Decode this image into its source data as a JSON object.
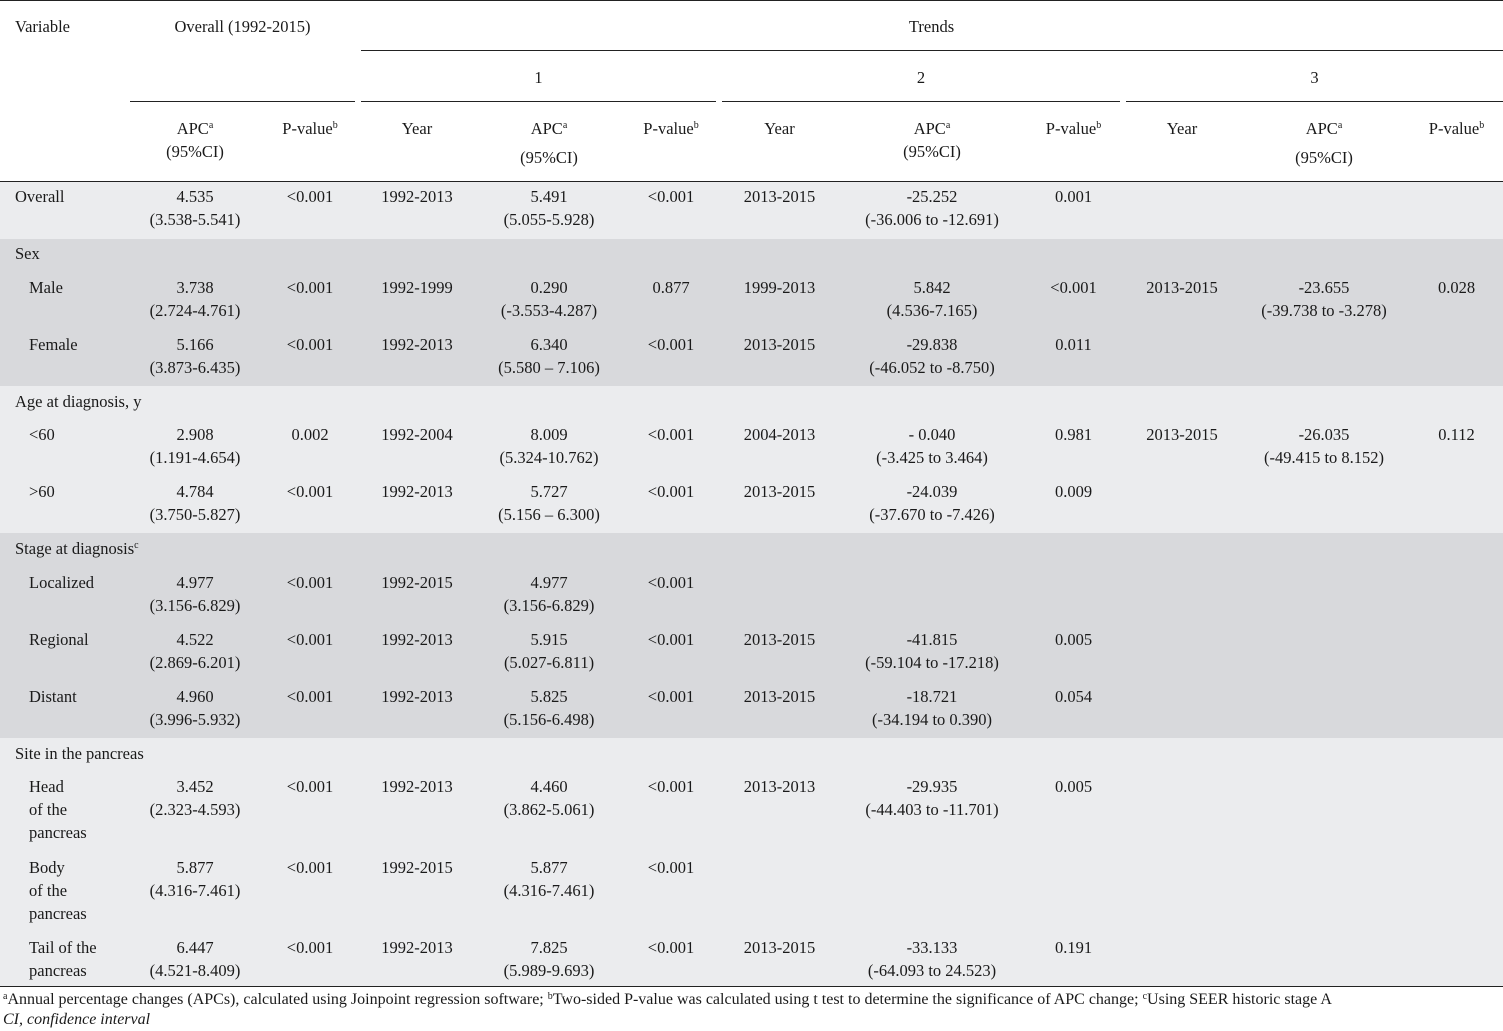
{
  "header": {
    "variable": "Variable",
    "overall": "Overall (1992-2015)",
    "trends": "Trends",
    "segments": [
      "1",
      "2",
      "3"
    ],
    "apc": "APC",
    "ci": "(95%CI)",
    "pvalue": "P-value",
    "year": "Year",
    "sup_a": "a",
    "sup_b": "b"
  },
  "rows": [
    {
      "label": "Overall",
      "ov_apc": "4.535",
      "ov_ci": "(3.538-5.541)",
      "ov_p": "<0.001",
      "y1": "1992-2013",
      "a1": "5.491",
      "ci1": "(5.055-5.928)",
      "p1": "<0.001",
      "y2": "2013-2015",
      "a2": "-25.252",
      "ci2": "(-36.006 to -12.691)",
      "p2": "0.001",
      "y3": "",
      "a3": "",
      "ci3": "",
      "p3": ""
    },
    {
      "label": "Male",
      "ov_apc": "3.738",
      "ov_ci": "(2.724-4.761)",
      "ov_p": "<0.001",
      "y1": "1992-1999",
      "a1": "0.290",
      "ci1": "(-3.553-4.287)",
      "p1": "0.877",
      "y2": "1999-2013",
      "a2": "5.842",
      "ci2": "(4.536-7.165)",
      "p2": "<0.001",
      "y3": "2013-2015",
      "a3": "-23.655",
      "ci3": "(-39.738 to -3.278)",
      "p3": "0.028"
    },
    {
      "label": "Female",
      "ov_apc": "5.166",
      "ov_ci": "(3.873-6.435)",
      "ov_p": "<0.001",
      "y1": "1992-2013",
      "a1": "6.340",
      "ci1": "(5.580 – 7.106)",
      "p1": "<0.001",
      "y2": "2013-2015",
      "a2": "-29.838",
      "ci2": "(-46.052 to -8.750)",
      "p2": "0.011",
      "y3": "",
      "a3": "",
      "ci3": "",
      "p3": ""
    },
    {
      "label": "<60",
      "ov_apc": "2.908",
      "ov_ci": "(1.191-4.654)",
      "ov_p": "0.002",
      "y1": "1992-2004",
      "a1": "8.009",
      "ci1": "(5.324-10.762)",
      "p1": "<0.001",
      "y2": "2004-2013",
      "a2": "- 0.040",
      "ci2": "(-3.425 to 3.464)",
      "p2": "0.981",
      "y3": "2013-2015",
      "a3": "-26.035",
      "ci3": "(-49.415 to 8.152)",
      "p3": "0.112"
    },
    {
      "label": ">60",
      "ov_apc": "4.784",
      "ov_ci": "(3.750-5.827)",
      "ov_p": "<0.001",
      "y1": "1992-2013",
      "a1": "5.727",
      "ci1": "(5.156 – 6.300)",
      "p1": "<0.001",
      "y2": "2013-2015",
      "a2": "-24.039",
      "ci2": "(-37.670 to -7.426)",
      "p2": "0.009",
      "y3": "",
      "a3": "",
      "ci3": "",
      "p3": ""
    },
    {
      "label": "Localized",
      "ov_apc": "4.977",
      "ov_ci": "(3.156-6.829)",
      "ov_p": "<0.001",
      "y1": "1992-2015",
      "a1": "4.977",
      "ci1": "(3.156-6.829)",
      "p1": "<0.001",
      "y2": "",
      "a2": "",
      "ci2": "",
      "p2": "",
      "y3": "",
      "a3": "",
      "ci3": "",
      "p3": ""
    },
    {
      "label": "Regional",
      "ov_apc": "4.522",
      "ov_ci": "(2.869-6.201)",
      "ov_p": "<0.001",
      "y1": "1992-2013",
      "a1": "5.915",
      "ci1": "(5.027-6.811)",
      "p1": "<0.001",
      "y2": "2013-2015",
      "a2": "-41.815",
      "ci2": "(-59.104 to -17.218)",
      "p2": "0.005",
      "y3": "",
      "a3": "",
      "ci3": "",
      "p3": ""
    },
    {
      "label": "Distant",
      "ov_apc": "4.960",
      "ov_ci": "(3.996-5.932)",
      "ov_p": "<0.001",
      "y1": "1992-2013",
      "a1": "5.825",
      "ci1": "(5.156-6.498)",
      "p1": "<0.001",
      "y2": "2013-2015",
      "a2": "-18.721",
      "ci2": "(-34.194 to 0.390)",
      "p2": "0.054",
      "y3": "",
      "a3": "",
      "ci3": "",
      "p3": ""
    },
    {
      "label": "Head",
      "label2": "of the",
      "label3": "pancreas",
      "ov_apc": "3.452",
      "ov_ci": "(2.323-4.593)",
      "ov_p": "<0.001",
      "y1": "1992-2013",
      "a1": "4.460",
      "ci1": "(3.862-5.061)",
      "p1": "<0.001",
      "y2": "2013-2013",
      "a2": "-29.935",
      "ci2": "(-44.403 to -11.701)",
      "p2": "0.005",
      "y3": "",
      "a3": "",
      "ci3": "",
      "p3": ""
    },
    {
      "label": "Body",
      "label2": "of the",
      "label3": "pancreas",
      "ov_apc": "5.877",
      "ov_ci": "(4.316-7.461)",
      "ov_p": "<0.001",
      "y1": "1992-2015",
      "a1": "5.877",
      "ci1": "(4.316-7.461)",
      "p1": "<0.001",
      "y2": "",
      "a2": "",
      "ci2": "",
      "p2": "",
      "y3": "",
      "a3": "",
      "ci3": "",
      "p3": ""
    },
    {
      "label": "Tail of the",
      "label2": "pancreas",
      "ov_apc": "6.447",
      "ov_ci": "(4.521-8.409)",
      "ov_p": "<0.001",
      "y1": "1992-2013",
      "a1": "7.825",
      "ci1": "(5.989-9.693)",
      "p1": "<0.001",
      "y2": "2013-2015",
      "a2": "-33.133",
      "ci2": "(-64.093 to 24.523)",
      "p2": "0.191",
      "y3": "",
      "a3": "",
      "ci3": "",
      "p3": ""
    }
  ],
  "sections": {
    "sex": "Sex",
    "age": "Age at diagnosis, y",
    "stage": "Stage at diagnosis",
    "stage_sup": "c",
    "site": "Site in the pancreas"
  },
  "footnote": {
    "a_mark": "a",
    "a_text": "Annual percentage changes (APCs), calculated using Joinpoint regression software; ",
    "b_mark": "b",
    "b_text": "Two-sided P-value was calculated using t test to determine the significance of APC change; ",
    "c_mark": "c",
    "c_text": "Using SEER historic stage A",
    "ci_line": "CI, confidence interval"
  }
}
